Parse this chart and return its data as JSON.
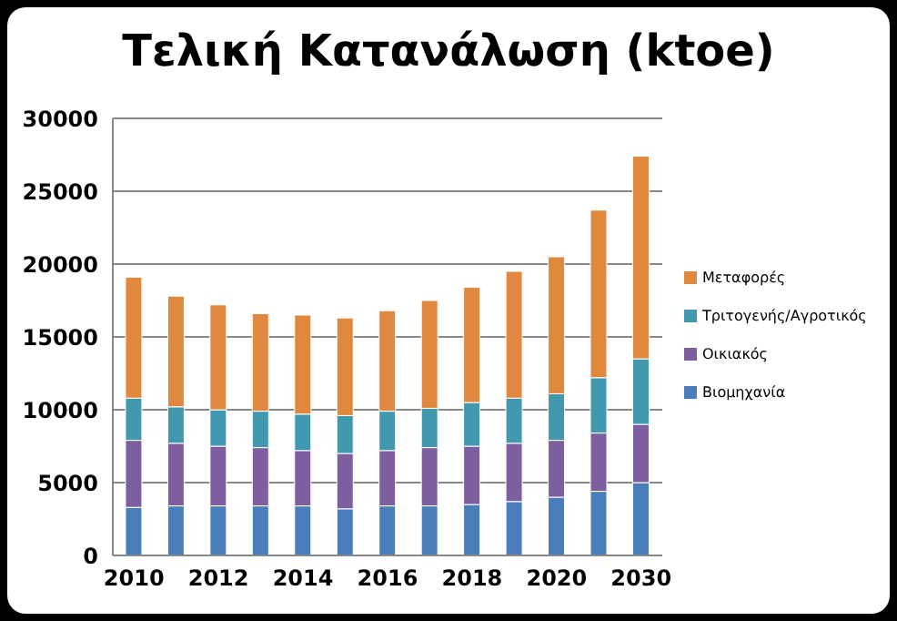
{
  "chart_data": {
    "type": "bar",
    "title": "Τελική Κατανάλωση (ktoe)",
    "stacked": true,
    "categories": [
      "2010",
      null,
      "2012",
      null,
      "2014",
      null,
      "2016",
      null,
      "2018",
      null,
      "2020",
      null,
      "2030"
    ],
    "series": [
      {
        "name": "Βιομηχανία",
        "color": "#4a7ebb",
        "values": [
          3300,
          3400,
          3400,
          3400,
          3400,
          3200,
          3400,
          3400,
          3500,
          3700,
          4000,
          4400,
          5000
        ]
      },
      {
        "name": "Οικιακός",
        "color": "#7d5fa0",
        "values": [
          4600,
          4300,
          4100,
          4000,
          3800,
          3800,
          3800,
          4000,
          4000,
          4000,
          3900,
          4000,
          4000
        ]
      },
      {
        "name": "Τριτογενής/Αγροτικός",
        "color": "#4198af",
        "values": [
          2900,
          2500,
          2500,
          2500,
          2500,
          2600,
          2700,
          2700,
          3000,
          3100,
          3200,
          3800,
          4500
        ]
      },
      {
        "name": "Μεταφορές",
        "color": "#e0893e",
        "values": [
          8300,
          7600,
          7200,
          6700,
          6800,
          6700,
          6900,
          7400,
          7900,
          8700,
          9400,
          11500,
          13900
        ]
      }
    ],
    "ylim": [
      0,
      30000
    ],
    "yticks": [
      0,
      5000,
      10000,
      15000,
      20000,
      25000,
      30000
    ],
    "grid": "y",
    "legend": "right"
  }
}
